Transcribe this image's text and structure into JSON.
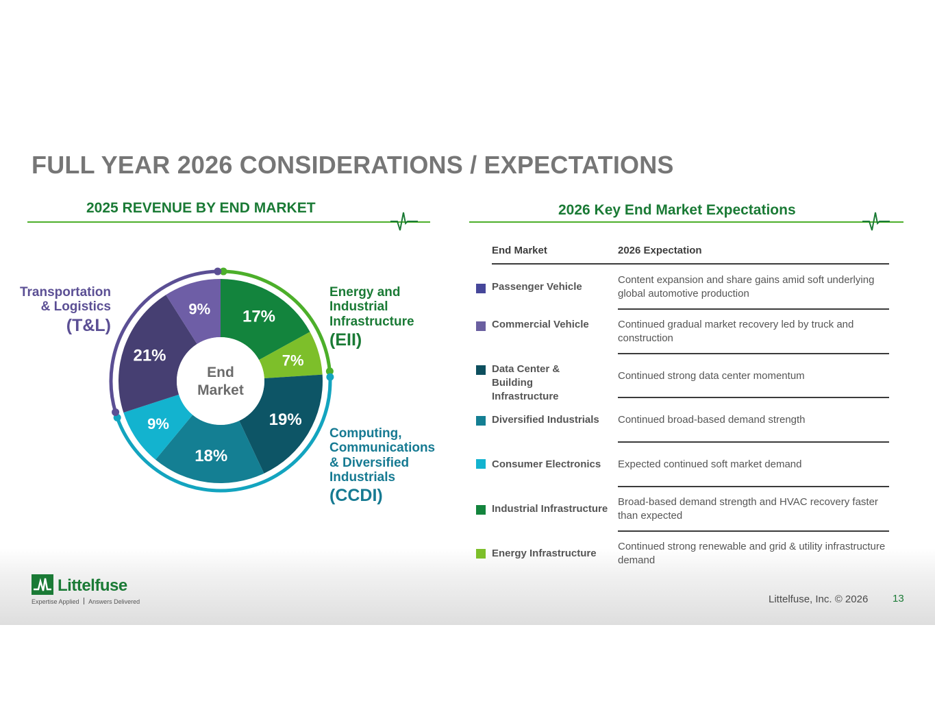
{
  "title": "FULL YEAR 2026 CONSIDERATIONS / EXPECTATIONS",
  "left_section": {
    "heading": "2025 REVENUE BY END MARKET",
    "center_label": [
      "End",
      "Market"
    ],
    "groups": {
      "tl": {
        "lines": [
          "Transportation",
          "& Logistics"
        ],
        "abbr": "(T&L)",
        "color": "#5b4f94"
      },
      "eii": {
        "lines": [
          "Energy and",
          "Industrial",
          "Infrastructure"
        ],
        "abbr": "(EII)",
        "color": "#1a7a35"
      },
      "ccdi": {
        "lines": [
          "Computing,",
          "Communications",
          "& Diversified",
          "Industrials"
        ],
        "abbr": "(CCDI)",
        "color": "#167a92"
      }
    }
  },
  "chart_data": {
    "type": "pie",
    "title": "2025 REVENUE BY END MARKET",
    "categories": [
      "Energy Infrastructure (EII)",
      "Industrial Infrastructure (EII)",
      "Data Center & Building Infrastructure",
      "Diversified Industrials",
      "Consumer Electronics",
      "Passenger Vehicle",
      "Commercial Vehicle"
    ],
    "values": [
      17,
      7,
      19,
      18,
      9,
      21,
      9
    ],
    "labels": [
      "17%",
      "7%",
      "19%",
      "18%",
      "9%",
      "21%",
      "9%"
    ],
    "colors": [
      "#13843d",
      "#7dbf2a",
      "#0d5566",
      "#147f93",
      "#13b3cf",
      "#463f72",
      "#6e5ea6"
    ],
    "unit": "%"
  },
  "right_section": {
    "heading": "2026 Key End Market Expectations",
    "col_market": "End Market",
    "col_expectation": "2026 Expectation",
    "rows": [
      {
        "market": "Passenger Vehicle",
        "expectation": "Content expansion and share gains amid soft underlying global automotive production",
        "color": "#46479a"
      },
      {
        "market": "Commercial Vehicle",
        "expectation": "Continued gradual market recovery led by truck and construction",
        "color": "#6a5fa0"
      },
      {
        "market": "Data Center  & Building Infrastructure",
        "expectation": "Continued strong data center momentum",
        "color": "#0d4f5e"
      },
      {
        "market": "Diversified Industrials",
        "expectation": "Continued broad-based demand strength",
        "color": "#147f93"
      },
      {
        "market": "Consumer Electronics",
        "expectation": "Expected continued soft market demand",
        "color": "#13b3cf"
      },
      {
        "market": "Industrial Infrastructure",
        "expectation": "Broad-based demand strength and HVAC recovery faster than expected",
        "color": "#13843d"
      },
      {
        "market": "Energy Infrastructure",
        "expectation": "Continued strong renewable and grid & utility infrastructure demand",
        "color": "#7dbf2a"
      }
    ]
  },
  "footer": {
    "brand": "Littelfuse",
    "tagline_left": "Expertise Applied",
    "tagline_right": "Answers Delivered",
    "copyright": "Littelfuse, Inc. © 2026",
    "page_number": "13"
  }
}
